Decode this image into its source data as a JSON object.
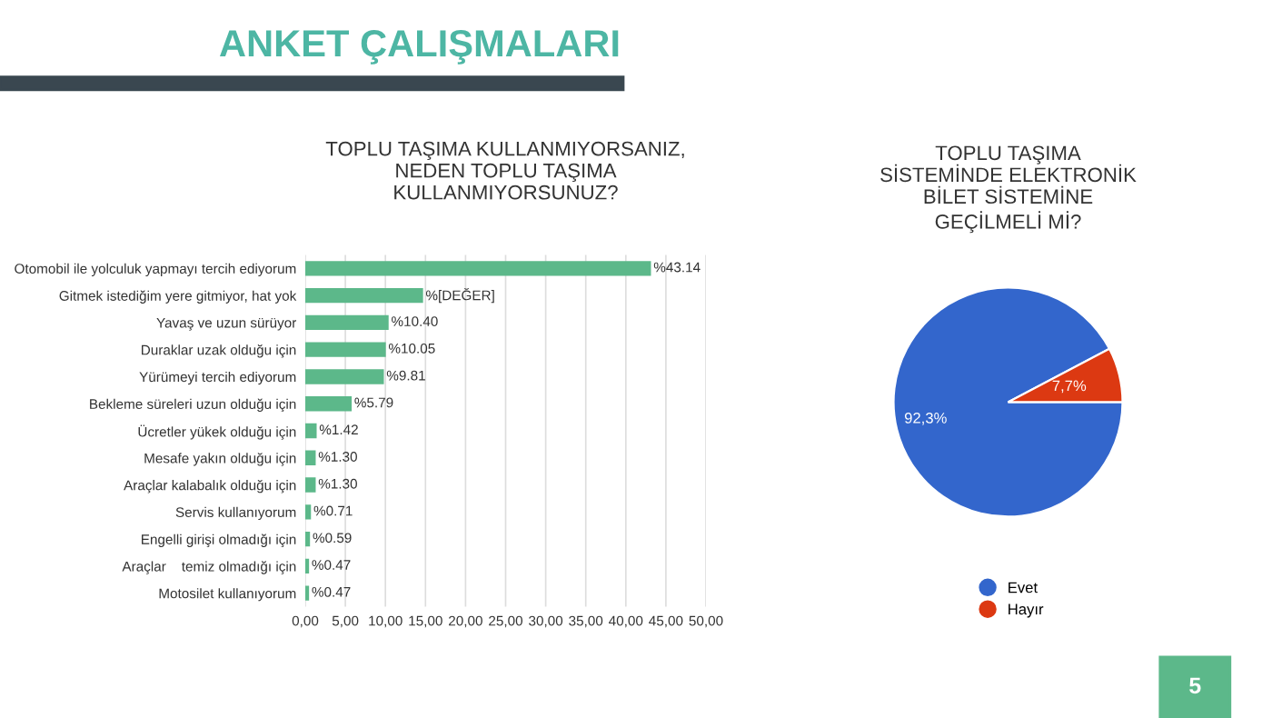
{
  "chart_data": [
    {
      "type": "bar",
      "orientation": "horizontal",
      "title": "TOPLU TAŞIMA KULLANMIYORSANIZ,\nNEDEN TOPLU TAŞIMA\nKULLANMIYORSUNUZ?",
      "annotations": [
        "ANKET ÇALIŞMALARI",
        "5"
      ],
      "categories": [
        "Otomobil ile yolculuk yapmayı tercih ediyorum",
        "Gitmek istediğim yere gitmiyor, hat yok",
        "Yavaş ve uzun sürüyor",
        "Duraklar uzak olduğu için",
        "Yürümeyi tercih ediyorum",
        "Bekleme süreleri uzun olduğu için",
        "Ücretler yükek olduğu için",
        "Mesafe yakın olduğu için",
        "Araçlar kalabalık olduğu için",
        "Servis kullanıyorum",
        "Engelli girişi olmadığı için",
        "Araçlar    temiz olmadığı için",
        "Motosilet kullanıyorum"
      ],
      "values": [
        43.14,
        14.7,
        10.4,
        10.05,
        9.81,
        5.79,
        1.42,
        1.3,
        1.3,
        0.71,
        0.59,
        0.47,
        0.47
      ],
      "value_labels": [
        "%43.14",
        "%[DEĞER]",
        "%10.40",
        "%10.05",
        "%9.81",
        "%5.79",
        "%1.42",
        "%1.30",
        "%1.30",
        "%0.71",
        "%0.59",
        "%0.47",
        "%0.47"
      ],
      "color": "#5cb88a",
      "xlim": [
        0,
        50
      ],
      "xticks": [
        {
          "value": 0,
          "label": "0,00"
        },
        {
          "value": 5,
          "label": "5,00"
        },
        {
          "value": 10,
          "label": "10,00"
        },
        {
          "value": 15,
          "label": "15,00"
        },
        {
          "value": 20,
          "label": "20,00"
        },
        {
          "value": 25,
          "label": "25,00"
        },
        {
          "value": 30,
          "label": "30,00"
        },
        {
          "value": 35,
          "label": "35,00"
        },
        {
          "value": 40,
          "label": "40,00"
        },
        {
          "value": 45,
          "label": "45,00"
        },
        {
          "value": 50,
          "label": "50,00"
        }
      ],
      "grid": "x"
    },
    {
      "type": "pie",
      "title": "TOPLU TAŞIMA\nSİSTEMİNDE ELEKTRONİK\nBİLET SİSTEMİNE\nGEÇİLMELİ Mİ?",
      "categories": [
        "Evet",
        "Hayır"
      ],
      "values": [
        92.3,
        7.7
      ],
      "colors": [
        "#3366cc",
        "#dc3912"
      ],
      "value_labels": [
        "92,3%",
        "7,7%"
      ],
      "legend": "bottom"
    }
  ]
}
